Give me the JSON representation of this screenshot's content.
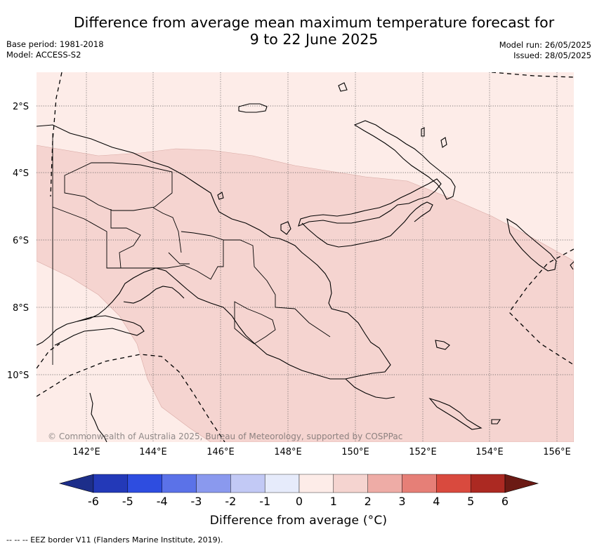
{
  "header": {
    "title_line1": "Difference from average mean maximum temperature forecast for",
    "title_line2": "9 to 22 June 2025",
    "base_period": "Base period: 1981-2018",
    "model": "Model: ACCESS-S2",
    "model_run": "Model run: 26/05/2025",
    "issued": "Issued: 28/05/2025"
  },
  "map": {
    "region": "Papua New Guinea",
    "lat_labels": [
      "2°S",
      "4°S",
      "6°S",
      "8°S",
      "10°S"
    ],
    "lon_labels": [
      "142°E",
      "144°E",
      "146°E",
      "148°E",
      "150°E",
      "152°E",
      "154°E",
      "156°E"
    ],
    "copyright": "© Commonwealth of Australia 2025, Bureau of Meteorology, supported by COSPPac",
    "colors": {
      "anomaly_0_to_1": "#fdece8",
      "anomaly_1_to_2": "#f5d4d0",
      "land_outline": "#000000",
      "grid": "#555555"
    }
  },
  "colorbar": {
    "ticks": [
      "-6",
      "-5",
      "-4",
      "-3",
      "-2",
      "-1",
      "0",
      "1",
      "2",
      "3",
      "4",
      "5",
      "6"
    ],
    "colors": [
      "#1d2e8a",
      "#2339b8",
      "#2e4de0",
      "#5b72e8",
      "#8a99ee",
      "#c2c9f5",
      "#e6ebfb",
      "#fdece8",
      "#f5d4d0",
      "#eeaca6",
      "#e67f77",
      "#d94a3e",
      "#ac2922",
      "#6b1a14"
    ],
    "label": "Difference from average (°C)"
  },
  "footnote": "-- -- -- EEZ border V11 (Flanders Marine Institute, 2019)."
}
